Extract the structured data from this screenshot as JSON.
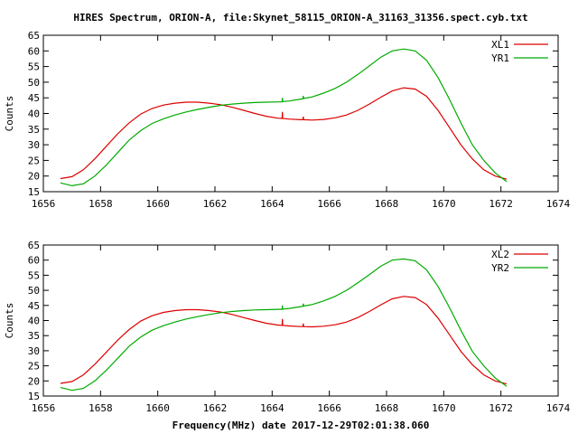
{
  "title": "HIRES Spectrum, ORION-A, file:Skynet_58115_ORION-A_31163_31356.spect.cyb.txt",
  "xlabel": "Frequency(MHz) date 2017-12-29T02:01:38.060",
  "colors": {
    "red": "#dd0000",
    "green": "#00aa00",
    "axis": "#000000",
    "background": "#ffffff"
  },
  "chart_data": [
    {
      "type": "line",
      "ylabel": "Counts",
      "xlim": [
        1656,
        1674
      ],
      "ylim": [
        15,
        65
      ],
      "xticks": [
        1656,
        1658,
        1660,
        1662,
        1664,
        1666,
        1668,
        1670,
        1672,
        1674
      ],
      "yticks": [
        15,
        20,
        25,
        30,
        35,
        40,
        45,
        50,
        55,
        60,
        65
      ],
      "grid": false,
      "legend_position": "top-right",
      "series": [
        {
          "name": "XL1",
          "color": "#dd0000",
          "x": [
            1656.6,
            1657.0,
            1657.4,
            1657.8,
            1658.2,
            1658.6,
            1659.0,
            1659.4,
            1659.8,
            1660.2,
            1660.6,
            1661.0,
            1661.4,
            1661.8,
            1662.2,
            1662.6,
            1663.0,
            1663.4,
            1663.8,
            1664.2,
            1664.35,
            1664.36,
            1664.37,
            1664.6,
            1665.0,
            1665.08,
            1665.09,
            1665.1,
            1665.4,
            1665.8,
            1666.2,
            1666.6,
            1667.0,
            1667.4,
            1667.8,
            1668.2,
            1668.6,
            1669.0,
            1669.4,
            1669.8,
            1670.2,
            1670.6,
            1671.0,
            1671.4,
            1671.8,
            1672.2
          ],
          "y": [
            19.2,
            19.8,
            22.0,
            25.5,
            29.5,
            33.5,
            37.0,
            39.8,
            41.6,
            42.7,
            43.3,
            43.6,
            43.6,
            43.3,
            42.8,
            42.0,
            41.0,
            40.0,
            39.1,
            38.5,
            38.4,
            40.5,
            38.4,
            38.2,
            38.0,
            38.0,
            39.0,
            38.0,
            37.9,
            38.1,
            38.6,
            39.5,
            41.0,
            43.0,
            45.2,
            47.2,
            48.2,
            47.8,
            45.5,
            41.0,
            35.5,
            30.0,
            25.5,
            22.0,
            20.0,
            19.0
          ]
        },
        {
          "name": "YR1",
          "color": "#00aa00",
          "x": [
            1656.6,
            1657.0,
            1657.4,
            1657.8,
            1658.2,
            1658.6,
            1659.0,
            1659.4,
            1659.8,
            1660.2,
            1660.6,
            1661.0,
            1661.4,
            1661.8,
            1662.2,
            1662.6,
            1663.0,
            1663.4,
            1663.8,
            1664.2,
            1664.35,
            1664.36,
            1664.37,
            1664.6,
            1665.0,
            1665.08,
            1665.09,
            1665.1,
            1665.4,
            1665.8,
            1666.2,
            1666.6,
            1667.0,
            1667.4,
            1667.8,
            1668.2,
            1668.6,
            1669.0,
            1669.4,
            1669.8,
            1670.2,
            1670.6,
            1671.0,
            1671.4,
            1671.8,
            1672.2
          ],
          "y": [
            17.8,
            16.9,
            17.5,
            20.0,
            23.5,
            27.5,
            31.5,
            34.5,
            36.8,
            38.3,
            39.5,
            40.5,
            41.3,
            42.0,
            42.6,
            43.0,
            43.3,
            43.5,
            43.6,
            43.7,
            43.7,
            45.0,
            43.8,
            44.0,
            44.6,
            44.7,
            45.6,
            44.8,
            45.3,
            46.5,
            48.0,
            50.0,
            52.5,
            55.2,
            58.0,
            60.0,
            60.6,
            60.0,
            57.0,
            51.5,
            44.5,
            37.0,
            30.0,
            25.0,
            21.0,
            18.2
          ]
        }
      ]
    },
    {
      "type": "line",
      "ylabel": "Counts",
      "xlim": [
        1656,
        1674
      ],
      "ylim": [
        15,
        65
      ],
      "xticks": [
        1656,
        1658,
        1660,
        1662,
        1664,
        1666,
        1668,
        1670,
        1672,
        1674
      ],
      "yticks": [
        15,
        20,
        25,
        30,
        35,
        40,
        45,
        50,
        55,
        60,
        65
      ],
      "grid": false,
      "legend_position": "top-right",
      "series": [
        {
          "name": "XL2",
          "color": "#dd0000",
          "x": [
            1656.6,
            1657.0,
            1657.4,
            1657.8,
            1658.2,
            1658.6,
            1659.0,
            1659.4,
            1659.8,
            1660.2,
            1660.6,
            1661.0,
            1661.4,
            1661.8,
            1662.2,
            1662.6,
            1663.0,
            1663.4,
            1663.8,
            1664.2,
            1664.35,
            1664.36,
            1664.37,
            1664.6,
            1665.0,
            1665.08,
            1665.09,
            1665.1,
            1665.4,
            1665.8,
            1666.2,
            1666.6,
            1667.0,
            1667.4,
            1667.8,
            1668.2,
            1668.6,
            1669.0,
            1669.4,
            1669.8,
            1670.2,
            1670.6,
            1671.0,
            1671.4,
            1671.8,
            1672.2
          ],
          "y": [
            19.2,
            19.8,
            22.0,
            25.5,
            29.5,
            33.5,
            37.0,
            39.8,
            41.6,
            42.7,
            43.3,
            43.6,
            43.6,
            43.3,
            42.8,
            42.0,
            41.0,
            40.0,
            39.1,
            38.5,
            38.4,
            40.5,
            38.4,
            38.2,
            38.0,
            38.0,
            39.0,
            38.0,
            37.9,
            38.1,
            38.6,
            39.5,
            41.0,
            43.0,
            45.2,
            47.2,
            48.0,
            47.6,
            45.3,
            40.8,
            35.3,
            29.8,
            25.4,
            22.0,
            20.0,
            19.0
          ]
        },
        {
          "name": "YR2",
          "color": "#00aa00",
          "x": [
            1656.6,
            1657.0,
            1657.4,
            1657.8,
            1658.2,
            1658.6,
            1659.0,
            1659.4,
            1659.8,
            1660.2,
            1660.6,
            1661.0,
            1661.4,
            1661.8,
            1662.2,
            1662.6,
            1663.0,
            1663.4,
            1663.8,
            1664.2,
            1664.35,
            1664.36,
            1664.37,
            1664.6,
            1665.0,
            1665.08,
            1665.09,
            1665.1,
            1665.4,
            1665.8,
            1666.2,
            1666.6,
            1667.0,
            1667.4,
            1667.8,
            1668.2,
            1668.6,
            1669.0,
            1669.4,
            1669.8,
            1670.2,
            1670.6,
            1671.0,
            1671.4,
            1671.8,
            1672.2
          ],
          "y": [
            17.8,
            16.9,
            17.5,
            20.0,
            23.5,
            27.5,
            31.5,
            34.5,
            36.8,
            38.3,
            39.5,
            40.5,
            41.3,
            42.0,
            42.6,
            43.0,
            43.3,
            43.5,
            43.6,
            43.7,
            43.7,
            45.0,
            43.8,
            44.0,
            44.6,
            44.7,
            45.6,
            44.8,
            45.3,
            46.5,
            48.0,
            50.0,
            52.5,
            55.2,
            58.0,
            60.0,
            60.4,
            59.8,
            56.8,
            51.3,
            44.3,
            36.8,
            29.8,
            25.0,
            21.0,
            18.2
          ]
        }
      ]
    }
  ]
}
